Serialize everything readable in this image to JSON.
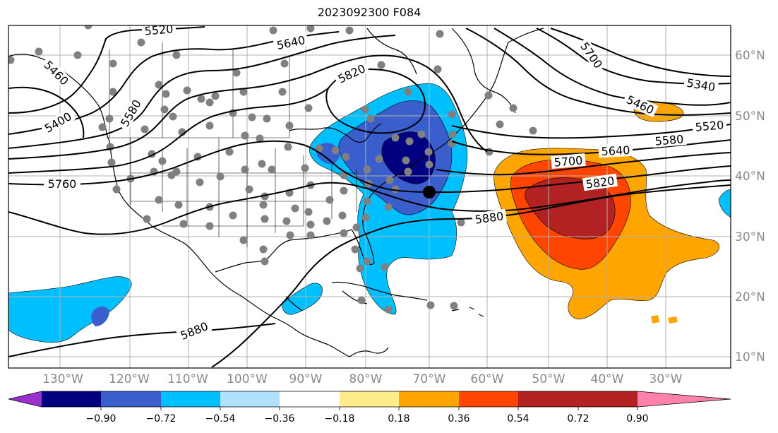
{
  "title": "2023092300 F084",
  "lat_labels": [
    "60°N",
    "50°N",
    "40°N",
    "30°N",
    "20°N",
    "10°N"
  ],
  "lon_labels": [
    "130°W",
    "120°W",
    "110°W",
    "100°W",
    "90°W",
    "80°W",
    "70°W",
    "60°W",
    "50°W",
    "40°W",
    "30°W"
  ],
  "colorbar": {
    "ticks": [
      "−0.90",
      "−0.72",
      "−0.54",
      "−0.36",
      "−0.18",
      "0.18",
      "0.36",
      "0.54",
      "0.72",
      "0.90"
    ],
    "colors": [
      "#9b30d0",
      "#000080",
      "#3a5fcd",
      "#00bfff",
      "#b0e2ff",
      "#ffffff",
      "#ffec8b",
      "#ffa500",
      "#ff4500",
      "#b22222",
      "#ff82ab"
    ]
  },
  "contour_labels": [
    "5520",
    "5640",
    "5460",
    "5400",
    "5580",
    "5820",
    "5760",
    "5700",
    "5340",
    "5460",
    "5520",
    "5580",
    "5640",
    "5700",
    "5820",
    "5880",
    "5880"
  ]
}
